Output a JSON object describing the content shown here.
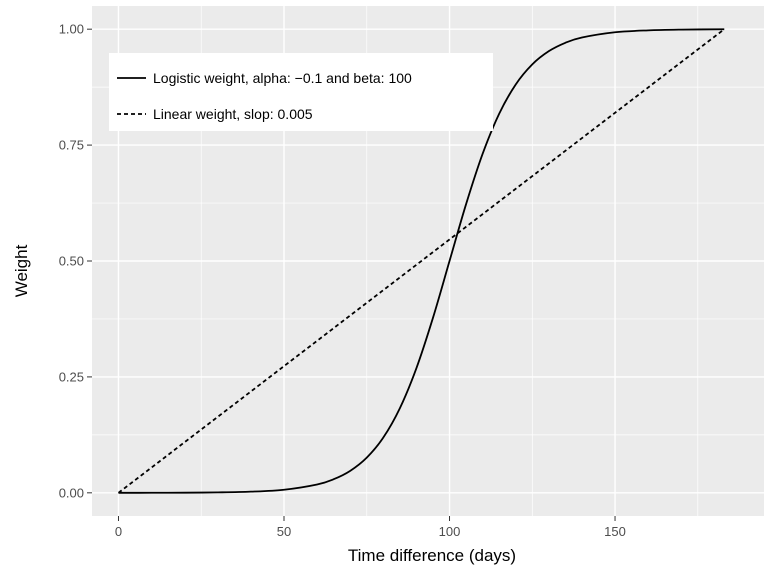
{
  "chart_data": {
    "type": "line",
    "xlabel": "Time difference (days)",
    "ylabel": "Weight",
    "xlim": [
      -8,
      195
    ],
    "ylim": [
      -0.05,
      1.05
    ],
    "x_ticks": [
      0,
      50,
      100,
      150
    ],
    "x_tick_labels": [
      "0",
      "50",
      "100",
      "150"
    ],
    "y_ticks": [
      0,
      0.25,
      0.5,
      0.75,
      1.0
    ],
    "y_tick_labels": [
      "0.00",
      "0.25",
      "0.50",
      "0.75",
      "1.00"
    ],
    "x_minor_ticks": [
      25,
      75,
      125,
      175
    ],
    "y_minor_ticks": [
      0.125,
      0.375,
      0.625,
      0.875
    ],
    "grid": true,
    "panel_color": "#ebebeb",
    "grid_color": "#ffffff",
    "legend_position": "top-left",
    "series": [
      {
        "name": "Logistic weight, alpha: −0.1 and beta: 100",
        "style": "solid",
        "color": "#000000",
        "x": [
          0,
          10,
          20,
          30,
          40,
          50,
          60,
          65,
          70,
          75,
          80,
          85,
          90,
          95,
          100,
          105,
          110,
          115,
          120,
          125,
          130,
          135,
          140,
          150,
          160,
          170,
          183
        ],
        "y": [
          0.0,
          0.0001,
          0.0003,
          0.0009,
          0.0025,
          0.0067,
          0.018,
          0.0293,
          0.0474,
          0.0759,
          0.1192,
          0.1824,
          0.2689,
          0.3775,
          0.5,
          0.6225,
          0.7311,
          0.8176,
          0.8808,
          0.9241,
          0.9526,
          0.9707,
          0.982,
          0.9933,
          0.9975,
          0.9991,
          0.9998
        ]
      },
      {
        "name": "Linear weight, slop: 0.005",
        "style": "dashed",
        "color": "#000000",
        "x": [
          0,
          183
        ],
        "y": [
          0,
          1.0
        ]
      }
    ]
  }
}
